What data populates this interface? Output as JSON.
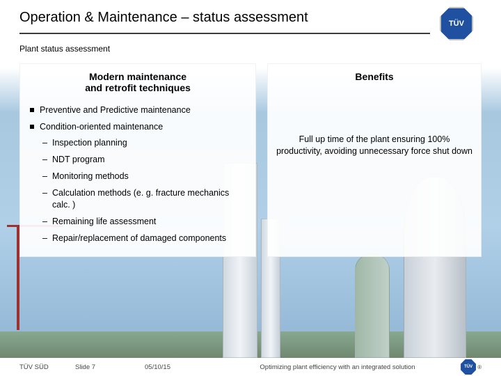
{
  "header": {
    "title": "Operation & Maintenance – status assessment",
    "logo_text": "TÜV"
  },
  "subtitle": "Plant status assessment",
  "columns": {
    "left": {
      "heading_line1": "Modern maintenance",
      "heading_line2": "and retrofit techniques",
      "bullets": [
        {
          "text": "Preventive and Predictive maintenance"
        },
        {
          "text": "Condition-oriented maintenance",
          "subs": [
            "Inspection planning",
            "NDT program",
            "Monitoring methods",
            "Calculation methods (e. g. fracture mechanics calc. )",
            "Remaining life assessment",
            "Repair/replacement of damaged components"
          ]
        }
      ]
    },
    "right": {
      "heading": "Benefits",
      "body": "Full up time of the plant ensuring 100% productivity, avoiding unnecessary force shut down"
    }
  },
  "footer": {
    "company": "TÜV SÜD",
    "slide": "Slide 7",
    "date": "05/10/15",
    "tagline": "Optimizing plant efficiency with an integrated solution",
    "mini_logo": "TÜV",
    "reg": "®"
  },
  "colors": {
    "accent": "#2050a0",
    "underline": "#3a3a3a"
  }
}
